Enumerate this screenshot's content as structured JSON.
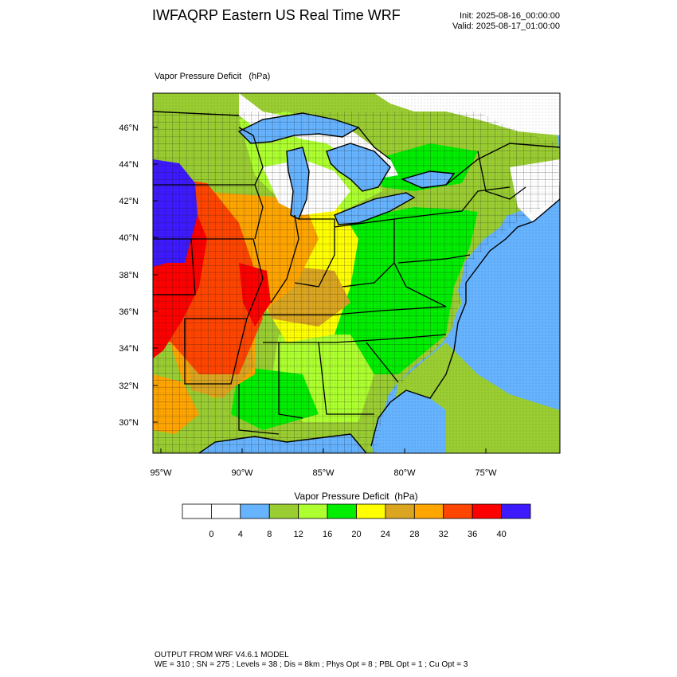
{
  "header": {
    "title": "IWFAQRP Eastern US Real Time WRF",
    "init": "Init: 2025-08-16_00:00:00",
    "valid": "Valid: 2025-08-17_01:00:00"
  },
  "map": {
    "label": "Vapor Pressure Deficit   (hPa)",
    "lat_ticks": [
      "46°N",
      "44°N",
      "42°N",
      "40°N",
      "38°N",
      "36°N",
      "34°N",
      "32°N",
      "30°N"
    ],
    "lon_ticks": [
      "95°W",
      "90°W",
      "85°W",
      "80°W",
      "75°W"
    ],
    "colors": {
      "ocean": "#66b3ff",
      "white": "#ffffff",
      "olive": "#9acd32",
      "lime": "#adff2f",
      "green": "#00ee00",
      "yellow": "#ffff00",
      "goldenrod": "#daa520",
      "orange": "#ffa500",
      "orangered": "#ff4500",
      "red": "#ff0000",
      "blue": "#3d1aff"
    }
  },
  "colorbar": {
    "title": "Vapor Pressure Deficit  (hPa)",
    "labels": [
      "0",
      "4",
      "8",
      "12",
      "16",
      "20",
      "24",
      "28",
      "32",
      "36",
      "40"
    ],
    "colors": [
      "#ffffff",
      "#ffffff",
      "#66b3ff",
      "#9acd32",
      "#adff2f",
      "#00ee00",
      "#ffff00",
      "#daa520",
      "#ffa500",
      "#ff4500",
      "#ff0000",
      "#3d1aff"
    ]
  },
  "footer": {
    "line1": "OUTPUT FROM WRF V4.6.1 MODEL",
    "line2": "WE = 310 ; SN = 275 ; Levels = 38 ; Dis = 8km ; Phys Opt = 8 ; PBL Opt = 1 ; Cu Opt = 3"
  }
}
